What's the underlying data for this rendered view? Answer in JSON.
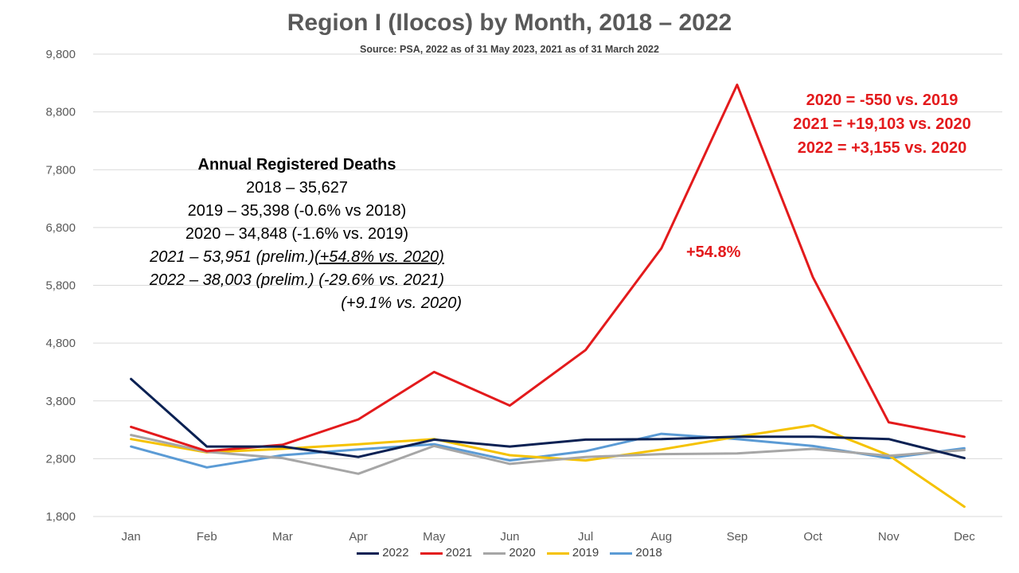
{
  "chart_data": {
    "type": "line",
    "title": "Region I (Ilocos) by Month, 2018 – 2022",
    "subtitle": "Source: PSA, 2022 as of 31 May 2023, 2021 as of 31 March 2022",
    "categories": [
      "Jan",
      "Feb",
      "Mar",
      "Apr",
      "May",
      "Jun",
      "Jul",
      "Aug",
      "Sep",
      "Oct",
      "Nov",
      "Dec"
    ],
    "ylim": [
      1800,
      9800
    ],
    "yticks": [
      1800,
      2800,
      3800,
      4800,
      5800,
      6800,
      7800,
      8800,
      9800
    ],
    "ytick_labels": [
      "1,800",
      "2,800",
      "3,800",
      "4,800",
      "5,800",
      "6,800",
      "7,800",
      "8,800",
      "9,800"
    ],
    "grid": true,
    "legend_position": "bottom",
    "series": [
      {
        "name": "2022",
        "color": "#0b2153",
        "values": [
          4180,
          3010,
          3010,
          2830,
          3130,
          3010,
          3130,
          3140,
          3180,
          3180,
          3140,
          2810
        ]
      },
      {
        "name": "2021",
        "color": "#e31a1c",
        "values": [
          3350,
          2930,
          3040,
          3480,
          4300,
          3720,
          4680,
          6440,
          9270,
          5940,
          3430,
          3180
        ]
      },
      {
        "name": "2020",
        "color": "#a6a6a6",
        "values": [
          3210,
          2920,
          2810,
          2540,
          3020,
          2710,
          2830,
          2880,
          2890,
          2970,
          2850,
          2950
        ]
      },
      {
        "name": "2019",
        "color": "#f5c200",
        "values": [
          3140,
          2910,
          2970,
          3050,
          3140,
          2860,
          2770,
          2960,
          3180,
          3380,
          2860,
          1970
        ]
      },
      {
        "name": "2018",
        "color": "#5b9bd5",
        "values": [
          3010,
          2650,
          2860,
          2960,
          3050,
          2770,
          2930,
          3230,
          3140,
          3020,
          2810,
          2980
        ]
      }
    ]
  },
  "annotations": {
    "annual_header": "Annual Registered Deaths",
    "y2018": "2018 – 35,627",
    "y2019": "2019 – 35,398 (-0.6% vs 2018)",
    "y2020": "2020 – 34,848 (-1.6% vs. 2019)",
    "y2021_a": "2021 – 53,951 (prelim.)",
    "y2021_b": "(+54.8% vs. 2020)",
    "y2022": "2022 – 38,003 (prelim.) (-29.6% vs. 2021)",
    "y2022_b": "(+9.1% vs. 2020)",
    "red1": "2020 = -550 vs. 2019",
    "red2": "2021 = +19,103 vs. 2020",
    "red3": "2022 = +3,155 vs. 2020",
    "pct_label": "+54.8%"
  },
  "legend_items": [
    "2022",
    "2021",
    "2020",
    "2019",
    "2018"
  ]
}
